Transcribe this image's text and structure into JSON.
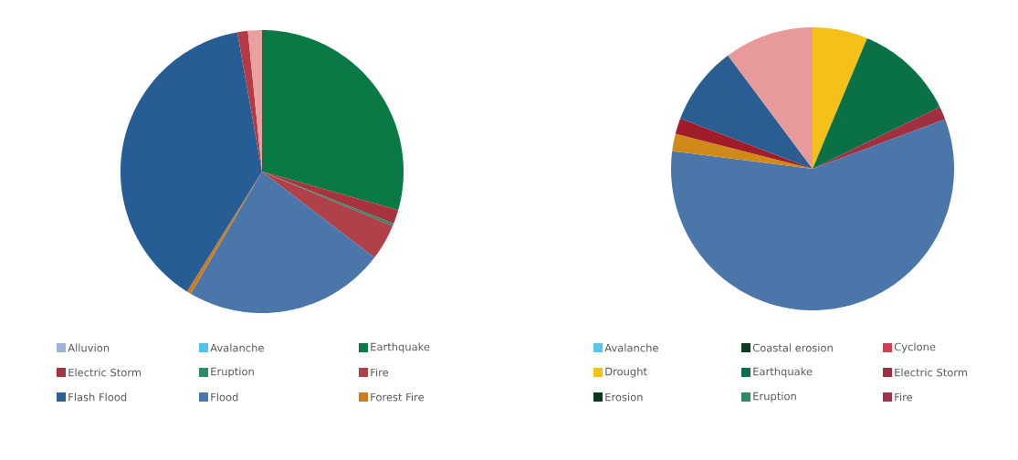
{
  "chart_data": [
    {
      "type": "pie",
      "legend": "bottom",
      "categories": [
        "Alluvion",
        "Avalanche",
        "Earthquake",
        "Electric Storm",
        "Eruption",
        "Fire",
        "Flash Flood",
        "Flood",
        "Forest Fire",
        null,
        null,
        null
      ],
      "values": [
        0,
        0,
        29.4,
        1.6,
        0.3,
        4.1,
        0,
        23.0,
        0.5,
        38.3,
        1.2,
        1.6
      ],
      "colors": [
        "#9fb3d6",
        "#4fc3e8",
        "#0a7a45",
        "#a8323e",
        "#2e8b65",
        "#b0404a",
        "#2f5f96",
        "#4a76aa",
        "#d07a1a",
        "#255d94",
        "#b53a45",
        "#e9a0a0"
      ]
    },
    {
      "type": "pie",
      "legend": "bottom",
      "categories": [
        "Avalanche",
        "Coastal erosion",
        "Cyclone",
        "Drought",
        "Earthquake",
        "Electric Storm",
        "Erosion",
        "Eruption",
        "Fire",
        null,
        null,
        null,
        null,
        null
      ],
      "values": [
        0,
        0,
        0,
        6.3,
        11.5,
        1.5,
        0,
        0,
        0,
        57.7,
        2.0,
        1.8,
        9.0,
        10.2
      ],
      "colors": [
        "#5bc5e8",
        "#0b3d20",
        "#d04050",
        "#f5c018",
        "#0a7045",
        "#a03040",
        "#0a3a1a",
        "#2e8b65",
        "#a33050",
        "#4a76aa",
        "#d08a1a",
        "#a01c28",
        "#2a5e93",
        "#e89a9a"
      ]
    }
  ]
}
